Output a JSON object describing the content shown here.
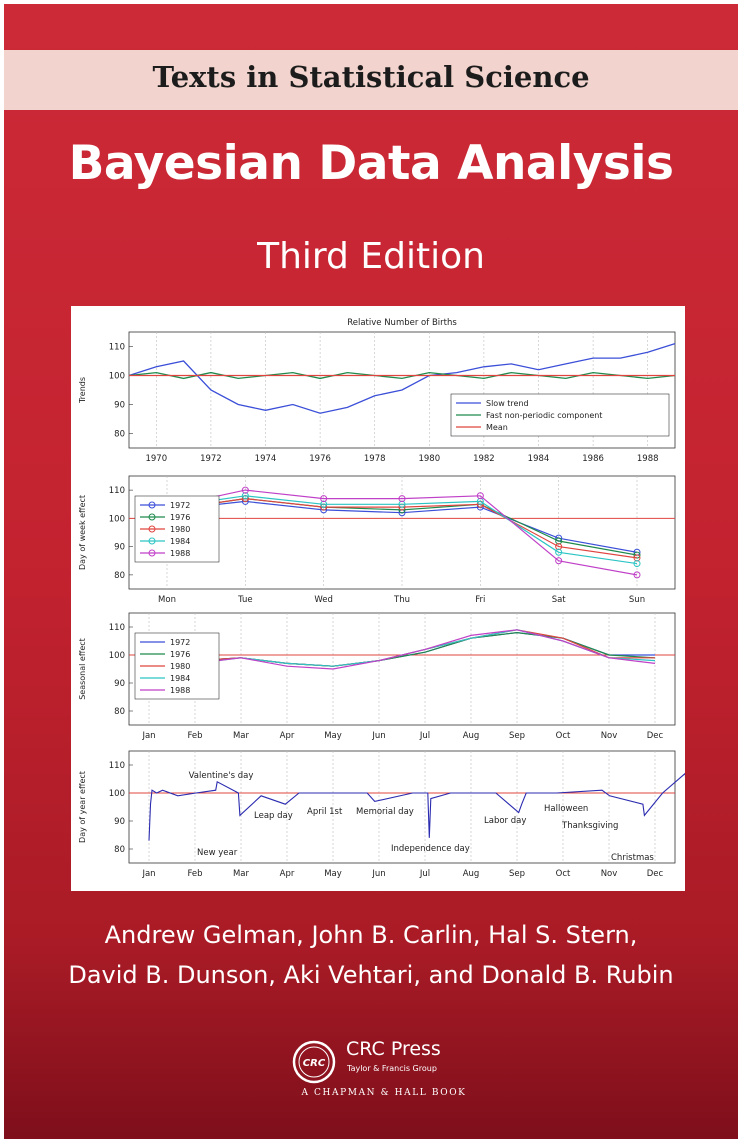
{
  "cover": {
    "series": "Texts in Statistical Science",
    "title": "Bayesian Data Analysis",
    "edition": "Third Edition",
    "authors_line1": "Andrew Gelman, John B. Carlin, Hal S. Stern,",
    "authors_line2": "David B. Dunson, Aki Vehtari, and Donald B. Rubin",
    "colors": {
      "background": "#c3222f",
      "band": "#f2d3cd",
      "text": "#ffffff"
    }
  },
  "publisher": {
    "logo_text": "CRC",
    "name": "CRC Press",
    "subtitle": "Taylor & Francis Group",
    "imprint": "A CHAPMAN & HALL BOOK"
  },
  "chart_data": [
    {
      "type": "line",
      "title": "Relative Number of Births",
      "ylabel": "Trends",
      "ylim": [
        75,
        115
      ],
      "yticks": [
        80,
        90,
        100,
        110
      ],
      "xlim": [
        1969,
        1989
      ],
      "xticks": [
        1970,
        1972,
        1974,
        1976,
        1978,
        1980,
        1982,
        1984,
        1986,
        1988
      ],
      "legend": "bottom-right",
      "grid": true,
      "series": [
        {
          "name": "Slow trend",
          "color": "#3b4fd8",
          "x": [
            1969,
            1970,
            1971,
            1972,
            1973,
            1974,
            1975,
            1976,
            1977,
            1978,
            1979,
            1980,
            1981,
            1982,
            1983,
            1984,
            1985,
            1986,
            1987,
            1988,
            1989
          ],
          "y": [
            100,
            103,
            105,
            95,
            90,
            88,
            90,
            87,
            89,
            93,
            95,
            100,
            101,
            103,
            104,
            102,
            104,
            106,
            106,
            108,
            111
          ]
        },
        {
          "name": "Fast non-periodic component",
          "color": "#1f8a4c",
          "x": [
            1969,
            1970,
            1971,
            1972,
            1973,
            1974,
            1975,
            1976,
            1977,
            1978,
            1979,
            1980,
            1981,
            1982,
            1983,
            1984,
            1985,
            1986,
            1987,
            1988,
            1989
          ],
          "y": [
            100,
            101,
            99,
            101,
            99,
            100,
            101,
            99,
            101,
            100,
            99,
            101,
            100,
            99,
            101,
            100,
            99,
            101,
            100,
            99,
            100
          ]
        },
        {
          "name": "Mean",
          "color": "#e0443f",
          "x": [
            1969,
            1989
          ],
          "y": [
            100,
            100
          ]
        }
      ]
    },
    {
      "type": "line",
      "ylabel": "Day of week effect",
      "ylim": [
        75,
        115
      ],
      "yticks": [
        80,
        90,
        100,
        110
      ],
      "categories": [
        "Mon",
        "Tue",
        "Wed",
        "Thu",
        "Fri",
        "Sat",
        "Sun"
      ],
      "legend": "top-left",
      "grid": true,
      "reference_line": 100,
      "series": [
        {
          "name": "1972",
          "color": "#3b4fd8",
          "values": [
            103,
            106,
            103,
            102,
            104,
            93,
            88
          ]
        },
        {
          "name": "1976",
          "color": "#1f8a4c",
          "values": [
            103,
            107,
            104,
            103,
            105,
            92,
            87
          ]
        },
        {
          "name": "1980",
          "color": "#e0443f",
          "values": [
            103,
            107,
            104,
            104,
            105,
            90,
            86
          ]
        },
        {
          "name": "1984",
          "color": "#2cc4c4",
          "values": [
            104,
            108,
            105,
            105,
            106,
            88,
            84
          ]
        },
        {
          "name": "1988",
          "color": "#c040c8",
          "values": [
            104,
            110,
            107,
            107,
            108,
            85,
            80
          ]
        }
      ]
    },
    {
      "type": "line",
      "ylabel": "Seasonal effect",
      "ylim": [
        75,
        115
      ],
      "yticks": [
        80,
        90,
        100,
        110
      ],
      "categories": [
        "Jan",
        "Feb",
        "Mar",
        "Apr",
        "May",
        "Jun",
        "Jul",
        "Aug",
        "Sep",
        "Oct",
        "Nov",
        "Dec"
      ],
      "legend": "top-left",
      "grid": true,
      "reference_line": 100,
      "series": [
        {
          "name": "1972",
          "color": "#3b4fd8",
          "values": [
            97,
            98,
            99,
            97,
            96,
            98,
            101,
            106,
            108,
            106,
            100,
            100
          ]
        },
        {
          "name": "1976",
          "color": "#1f8a4c",
          "values": [
            97,
            98,
            99,
            97,
            96,
            98,
            101,
            106,
            108,
            106,
            100,
            99
          ]
        },
        {
          "name": "1980",
          "color": "#e0443f",
          "values": [
            96,
            98,
            99,
            97,
            96,
            98,
            102,
            106,
            109,
            106,
            99,
            99
          ]
        },
        {
          "name": "1984",
          "color": "#2cc4c4",
          "values": [
            96,
            97,
            99,
            97,
            96,
            98,
            102,
            106,
            109,
            105,
            99,
            98
          ]
        },
        {
          "name": "1988",
          "color": "#c040c8",
          "values": [
            95,
            97,
            99,
            96,
            95,
            98,
            102,
            107,
            109,
            105,
            99,
            97
          ]
        }
      ]
    },
    {
      "type": "line",
      "ylabel": "Day of year effect",
      "ylim": [
        75,
        115
      ],
      "yticks": [
        80,
        90,
        100,
        110
      ],
      "categories": [
        "Jan",
        "Feb",
        "Mar",
        "Apr",
        "May",
        "Jun",
        "Jul",
        "Aug",
        "Sep",
        "Oct",
        "Nov",
        "Dec"
      ],
      "grid": true,
      "reference_line": 100,
      "series": [
        {
          "name": "",
          "color": "#2b2bb0",
          "x": [
            1,
            2,
            3,
            6,
            10,
            20,
            32,
            45,
            46,
            60,
            61,
            75,
            91,
            100,
            120,
            145,
            150,
            175,
            185,
            186,
            187,
            200,
            230,
            245,
            247,
            250,
            270,
            300,
            305,
            327,
            328,
            340,
            355,
            358,
            359,
            360,
            362,
            365
          ],
          "y": [
            83,
            96,
            101,
            100,
            101,
            99,
            100,
            101,
            104,
            100,
            92,
            99,
            96,
            100,
            100,
            100,
            97,
            100,
            100,
            84,
            98,
            100,
            100,
            93,
            96,
            100,
            100,
            101,
            99,
            96,
            92,
            100,
            107,
            78,
            97,
            110,
            104,
            112
          ]
        }
      ],
      "annotations": [
        "Valentine's day",
        "Leap day",
        "April 1st",
        "Memorial day",
        "Labor day",
        "Halloween",
        "Thanksgiving",
        "New year",
        "Independence day",
        "Christmas"
      ]
    }
  ]
}
